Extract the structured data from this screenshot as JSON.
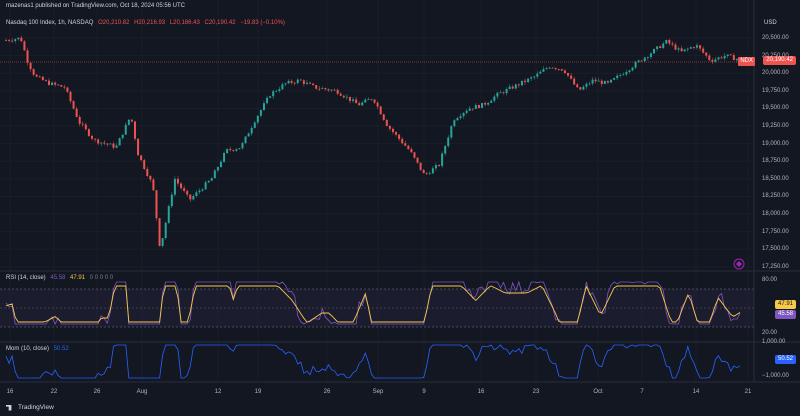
{
  "publisher_line": "mazenas1 published on TradingView.com, Oct 18, 2024 05:56 UTC",
  "currency": "USD",
  "symbol": {
    "title": "Nasdaq 100 Index, 1h, NASDAQ",
    "o": "O20,210.82",
    "h": "H20,216.93",
    "l": "L20,186.43",
    "c": "C20,190.42",
    "change": "−19.83 (−0.10%)",
    "ticker_tag": "NDX",
    "last_price": "20,190.42"
  },
  "rsi": {
    "label": "RSI (14, close)",
    "value1": "45.58",
    "value2": "47.91",
    "zeros": "0 0 0 0 0"
  },
  "mom": {
    "label": "Mom (10, close)",
    "value": "50.52"
  },
  "price_axis": [
    "20,500.00",
    "20,250.00",
    "20,000.00",
    "19,750.00",
    "19,500.00",
    "19,250.00",
    "19,000.00",
    "18,750.00",
    "18,500.00",
    "18,250.00",
    "18,000.00",
    "17,750.00",
    "17,500.00",
    "17,250.00"
  ],
  "rsi_axis": [
    "80.00",
    "20.00"
  ],
  "mom_axis": [
    "1,000.00",
    "−1,000.00"
  ],
  "x_axis": [
    "16",
    "22",
    "26",
    "Aug",
    "12",
    "19",
    "26",
    "Sep",
    "9",
    "16",
    "23",
    "Oct",
    "7",
    "14",
    "21"
  ],
  "footer": "TradingView",
  "colors": {
    "up": "#26a69a",
    "down": "#ef5350",
    "rsi": "#7e57c2",
    "rsi_ma": "#f7c948",
    "mom": "#2962ff",
    "bg": "#131722"
  },
  "chart_data": {
    "type": "candlestick",
    "series": [
      {
        "name": "Nasdaq 100 Index",
        "close_path": [
          [
            0,
            20470
          ],
          [
            0.02,
            20500
          ],
          [
            0.03,
            20150
          ],
          [
            0.04,
            19950
          ],
          [
            0.06,
            19850
          ],
          [
            0.08,
            19800
          ],
          [
            0.1,
            19300
          ],
          [
            0.12,
            19050
          ],
          [
            0.15,
            18950
          ],
          [
            0.17,
            19400
          ],
          [
            0.18,
            18850
          ],
          [
            0.2,
            18400
          ],
          [
            0.21,
            17500
          ],
          [
            0.23,
            18500
          ],
          [
            0.25,
            18200
          ],
          [
            0.28,
            18500
          ],
          [
            0.3,
            18900
          ],
          [
            0.32,
            18950
          ],
          [
            0.34,
            19350
          ],
          [
            0.36,
            19700
          ],
          [
            0.38,
            19850
          ],
          [
            0.4,
            19900
          ],
          [
            0.42,
            19800
          ],
          [
            0.45,
            19750
          ],
          [
            0.48,
            19550
          ],
          [
            0.5,
            19650
          ],
          [
            0.52,
            19250
          ],
          [
            0.55,
            18900
          ],
          [
            0.57,
            18550
          ],
          [
            0.59,
            18700
          ],
          [
            0.61,
            19350
          ],
          [
            0.63,
            19500
          ],
          [
            0.65,
            19550
          ],
          [
            0.67,
            19700
          ],
          [
            0.7,
            19850
          ],
          [
            0.72,
            19950
          ],
          [
            0.74,
            20100
          ],
          [
            0.76,
            20050
          ],
          [
            0.78,
            19750
          ],
          [
            0.8,
            19900
          ],
          [
            0.82,
            19850
          ],
          [
            0.84,
            20000
          ],
          [
            0.86,
            20150
          ],
          [
            0.88,
            20300
          ],
          [
            0.9,
            20450
          ],
          [
            0.92,
            20300
          ],
          [
            0.94,
            20400
          ],
          [
            0.96,
            20180
          ],
          [
            0.98,
            20250
          ],
          [
            1,
            20190
          ]
        ]
      }
    ],
    "ylim": [
      17250,
      20500
    ]
  }
}
